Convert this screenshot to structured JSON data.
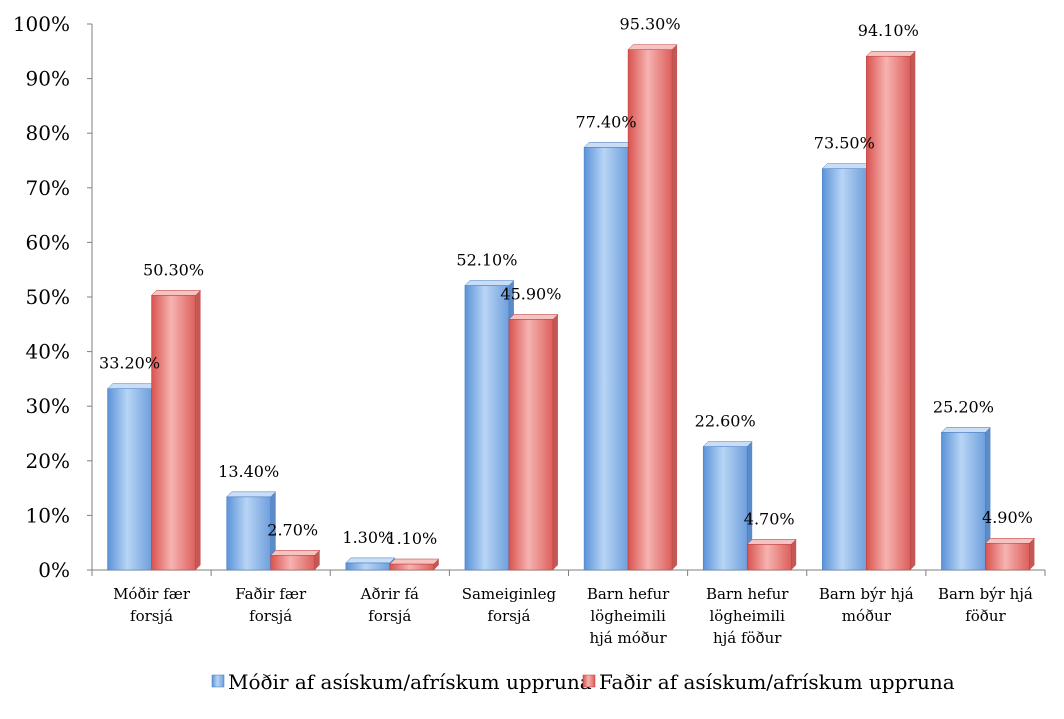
{
  "chart_data": {
    "type": "bar",
    "categories": [
      [
        "Móðir fær",
        "forsjá"
      ],
      [
        "Faðir fær",
        "forsjá"
      ],
      [
        "Aðrir fá",
        "forsjá"
      ],
      [
        "Sameiginleg",
        "forsjá"
      ],
      [
        "Barn hefur",
        "lögheimili",
        "hjá móður"
      ],
      [
        "Barn hefur",
        "lögheimili",
        "hjá föður"
      ],
      [
        "Barn býr hjá",
        "móður"
      ],
      [
        "Barn býr hjá",
        "föður"
      ]
    ],
    "series": [
      {
        "name": "Móðir af asískum/afrískum uppruna",
        "values": [
          33.2,
          13.4,
          1.3,
          52.1,
          77.4,
          22.6,
          73.5,
          25.2
        ],
        "labels": [
          "33.20%",
          "13.40%",
          "1.30%",
          "52.10%",
          "77.40%",
          "22.60%",
          "73.50%",
          "25.20%"
        ],
        "color": "#9cc3ee"
      },
      {
        "name": "Faðir af asískum/afrískum uppruna",
        "values": [
          50.3,
          2.7,
          1.1,
          45.9,
          95.3,
          4.7,
          94.1,
          4.9
        ],
        "labels": [
          "50.30%",
          "2.70%",
          "1.10%",
          "45.90%",
          "95.30%",
          "4.70%",
          "94.10%",
          "4.90%"
        ],
        "color": "#ee9a98"
      }
    ],
    "yticks": [
      "0%",
      "10%",
      "20%",
      "30%",
      "40%",
      "50%",
      "60%",
      "70%",
      "80%",
      "90%",
      "100%"
    ],
    "ylim": [
      0,
      100
    ],
    "xlabel": "",
    "ylabel": "",
    "title": "",
    "grid": false,
    "legend_position": "bottom"
  }
}
